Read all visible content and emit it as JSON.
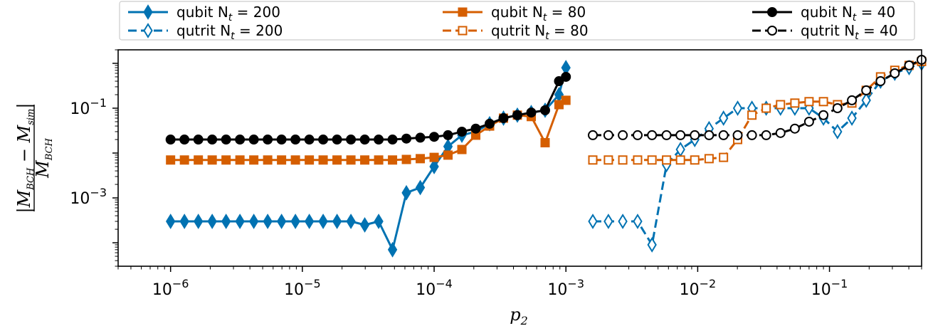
{
  "chart_data": {
    "type": "line",
    "xscale": "log",
    "yscale": "log",
    "xlim": [
      4e-07,
      0.5
    ],
    "ylim": [
      3e-05,
      2
    ],
    "xlabel": "p",
    "xlabel_sub": "2",
    "ylabel": {
      "num_left": "|M",
      "num_left_sub": "BCH",
      "num_mid": " − M",
      "num_mid_sub": "sim",
      "num_right": "|",
      "den": "M",
      "den_sub": "BCH"
    },
    "xticks": [
      {
        "value": 1e-06,
        "base": "10",
        "exp": "−6"
      },
      {
        "value": 1e-05,
        "base": "10",
        "exp": "−5"
      },
      {
        "value": 0.0001,
        "base": "10",
        "exp": "−4"
      },
      {
        "value": 0.001,
        "base": "10",
        "exp": "−3"
      },
      {
        "value": 0.01,
        "base": "10",
        "exp": "−2"
      },
      {
        "value": 0.1,
        "base": "10",
        "exp": "−1"
      }
    ],
    "yticks": [
      {
        "value": 0.1,
        "base": "10",
        "exp": "−1"
      },
      {
        "value": 0.001,
        "base": "10",
        "exp": "−3"
      }
    ],
    "legend": {
      "placement": "top",
      "entries": [
        {
          "label": "qubit N",
          "sub": "t",
          "suffix": " = 200",
          "series": 0
        },
        {
          "label": "qubit N",
          "sub": "t",
          "suffix": " = 80",
          "series": 2
        },
        {
          "label": "qubit N",
          "sub": "t",
          "suffix": " = 40",
          "series": 4
        },
        {
          "label": "qutrit N",
          "sub": "t",
          "suffix": " = 200",
          "series": 1
        },
        {
          "label": "qutrit N",
          "sub": "t",
          "suffix": " = 80",
          "series": 3
        },
        {
          "label": "qutrit N",
          "sub": "t",
          "suffix": " = 40",
          "series": 5
        }
      ]
    },
    "series": [
      {
        "name": "qubit N_t = 200",
        "color": "#0072b2",
        "marker": "diamond",
        "filled": true,
        "dashed": false,
        "x": [
          1e-06,
          1.274e-06,
          1.624e-06,
          2.069e-06,
          2.637e-06,
          3.36e-06,
          4.281e-06,
          5.456e-06,
          6.952e-06,
          8.859e-06,
          1.129e-05,
          1.438e-05,
          1.833e-05,
          2.336e-05,
          2.976e-05,
          3.793e-05,
          4.833e-05,
          6.158e-05,
          7.848e-05,
          0.0001,
          0.0001274,
          0.0001624,
          0.0002069,
          0.0002637,
          0.000336,
          0.0004281,
          0.0005456,
          0.0006952,
          0.0008859,
          0.001
        ],
        "y": [
          0.0003,
          0.0003,
          0.0003,
          0.0003,
          0.0003,
          0.0003,
          0.0003,
          0.0003,
          0.0003,
          0.0003,
          0.0003,
          0.0003,
          0.0003,
          0.0003,
          0.00025,
          0.0003,
          7e-05,
          0.0013,
          0.0017,
          0.005,
          0.014,
          0.025,
          0.03,
          0.045,
          0.06,
          0.07,
          0.08,
          0.09,
          0.2,
          0.8
        ]
      },
      {
        "name": "qutrit N_t = 200",
        "color": "#0072b2",
        "marker": "diamond",
        "filled": false,
        "dashed": true,
        "x": [
          0.0016,
          0.0021,
          0.0027,
          0.0035,
          0.0045,
          0.0058,
          0.0074,
          0.0095,
          0.0122,
          0.0157,
          0.0201,
          0.0258,
          0.0331,
          0.0425,
          0.0546,
          0.07,
          0.09,
          0.115,
          0.148,
          0.19,
          0.244,
          0.313,
          0.402,
          0.5
        ],
        "y": [
          0.0003,
          0.0003,
          0.0003,
          0.0003,
          9e-05,
          0.0055,
          0.012,
          0.02,
          0.035,
          0.06,
          0.1,
          0.1,
          0.1,
          0.1,
          0.1,
          0.1,
          0.06,
          0.03,
          0.06,
          0.15,
          0.4,
          0.6,
          0.8,
          1.0
        ]
      },
      {
        "name": "qubit N_t = 80",
        "color": "#d55e00",
        "marker": "square",
        "filled": true,
        "dashed": false,
        "x": [
          1e-06,
          1.274e-06,
          1.624e-06,
          2.069e-06,
          2.637e-06,
          3.36e-06,
          4.281e-06,
          5.456e-06,
          6.952e-06,
          8.859e-06,
          1.129e-05,
          1.438e-05,
          1.833e-05,
          2.336e-05,
          2.976e-05,
          3.793e-05,
          4.833e-05,
          6.158e-05,
          7.848e-05,
          0.0001,
          0.0001274,
          0.0001624,
          0.0002069,
          0.0002637,
          0.000336,
          0.0004281,
          0.0005456,
          0.0006952,
          0.0008859,
          0.001
        ],
        "y": [
          0.007,
          0.007,
          0.007,
          0.007,
          0.007,
          0.007,
          0.007,
          0.007,
          0.007,
          0.007,
          0.007,
          0.007,
          0.007,
          0.007,
          0.007,
          0.007,
          0.007,
          0.0072,
          0.0075,
          0.008,
          0.009,
          0.012,
          0.025,
          0.04,
          0.06,
          0.07,
          0.065,
          0.017,
          0.12,
          0.15
        ]
      },
      {
        "name": "qutrit N_t = 80",
        "color": "#d55e00",
        "marker": "square",
        "filled": false,
        "dashed": true,
        "x": [
          0.0016,
          0.0021,
          0.0027,
          0.0035,
          0.0045,
          0.0058,
          0.0074,
          0.0095,
          0.0122,
          0.0157,
          0.0201,
          0.0258,
          0.0331,
          0.0425,
          0.0546,
          0.07,
          0.09,
          0.115,
          0.148,
          0.19,
          0.244,
          0.313,
          0.402,
          0.5
        ],
        "y": [
          0.007,
          0.007,
          0.007,
          0.007,
          0.007,
          0.007,
          0.007,
          0.007,
          0.0075,
          0.008,
          0.02,
          0.07,
          0.1,
          0.12,
          0.13,
          0.14,
          0.14,
          0.12,
          0.13,
          0.25,
          0.5,
          0.7,
          0.9,
          1.1
        ]
      },
      {
        "name": "qubit N_t = 40",
        "color": "#000000",
        "marker": "circle",
        "filled": true,
        "dashed": false,
        "x": [
          1e-06,
          1.274e-06,
          1.624e-06,
          2.069e-06,
          2.637e-06,
          3.36e-06,
          4.281e-06,
          5.456e-06,
          6.952e-06,
          8.859e-06,
          1.129e-05,
          1.438e-05,
          1.833e-05,
          2.336e-05,
          2.976e-05,
          3.793e-05,
          4.833e-05,
          6.158e-05,
          7.848e-05,
          0.0001,
          0.0001274,
          0.0001624,
          0.0002069,
          0.0002637,
          0.000336,
          0.0004281,
          0.0005456,
          0.0006952,
          0.0008859,
          0.001
        ],
        "y": [
          0.02,
          0.02,
          0.02,
          0.02,
          0.02,
          0.02,
          0.02,
          0.02,
          0.02,
          0.02,
          0.02,
          0.02,
          0.02,
          0.02,
          0.02,
          0.02,
          0.02,
          0.021,
          0.022,
          0.023,
          0.025,
          0.03,
          0.035,
          0.045,
          0.06,
          0.07,
          0.08,
          0.09,
          0.4,
          0.5
        ]
      },
      {
        "name": "qutrit N_t = 40",
        "color": "#000000",
        "marker": "circle",
        "filled": false,
        "dashed": true,
        "x": [
          0.0016,
          0.0021,
          0.0027,
          0.0035,
          0.0045,
          0.0058,
          0.0074,
          0.0095,
          0.0122,
          0.0157,
          0.0201,
          0.0258,
          0.0331,
          0.0425,
          0.0546,
          0.07,
          0.09,
          0.115,
          0.148,
          0.19,
          0.244,
          0.313,
          0.402,
          0.5
        ],
        "y": [
          0.025,
          0.025,
          0.025,
          0.025,
          0.025,
          0.025,
          0.025,
          0.025,
          0.025,
          0.025,
          0.025,
          0.025,
          0.025,
          0.028,
          0.035,
          0.05,
          0.07,
          0.1,
          0.15,
          0.25,
          0.4,
          0.6,
          0.9,
          1.2
        ]
      }
    ]
  }
}
